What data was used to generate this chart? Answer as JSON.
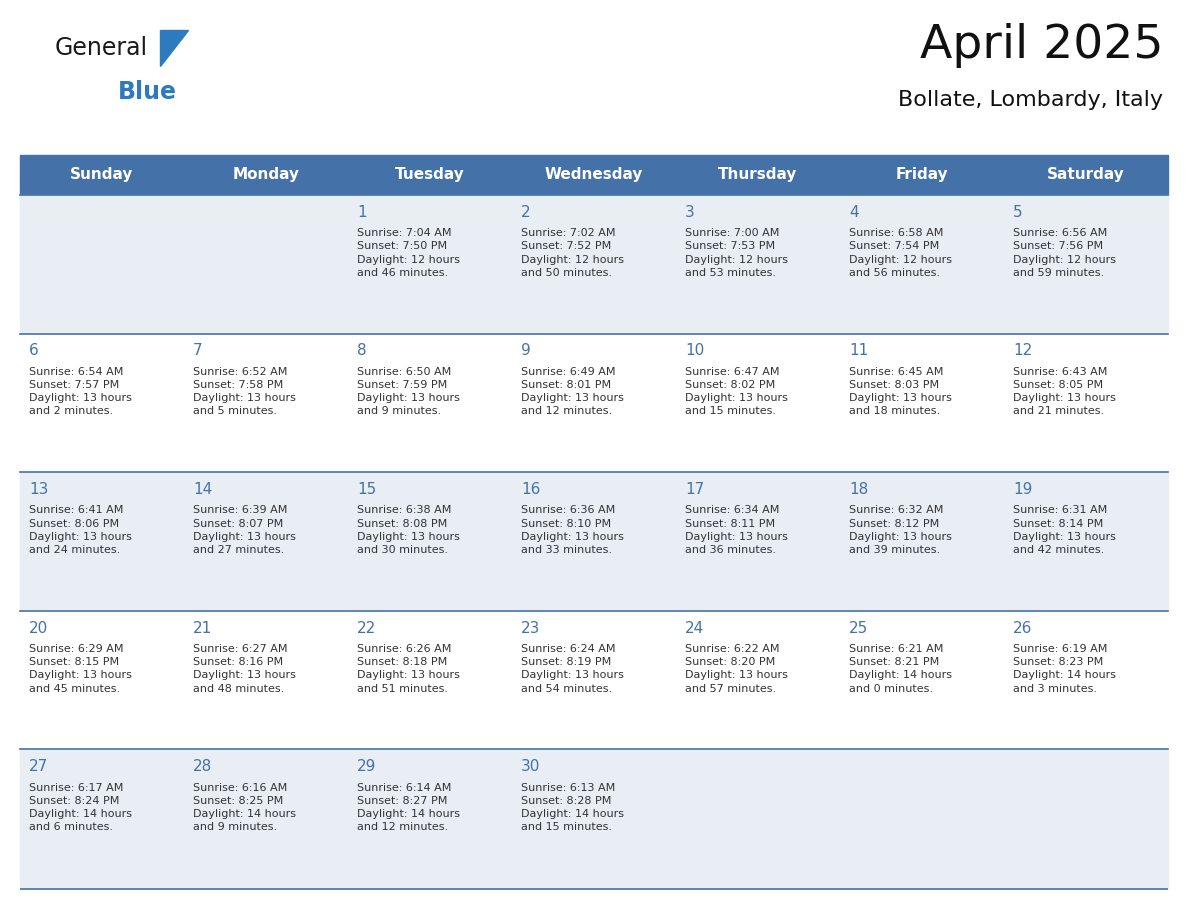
{
  "title": "April 2025",
  "subtitle": "Bollate, Lombardy, Italy",
  "header_bg": "#4472a8",
  "header_text_color": "#ffffff",
  "cell_bg_light": "#e8eef4",
  "cell_bg_white": "#ffffff",
  "cell_border_color": "#4472a8",
  "day_number_color": "#4472a8",
  "text_color": "#333333",
  "days_of_week": [
    "Sunday",
    "Monday",
    "Tuesday",
    "Wednesday",
    "Thursday",
    "Friday",
    "Saturday"
  ],
  "weeks": [
    [
      {
        "day": "",
        "info": ""
      },
      {
        "day": "",
        "info": ""
      },
      {
        "day": "1",
        "info": "Sunrise: 7:04 AM\nSunset: 7:50 PM\nDaylight: 12 hours\nand 46 minutes."
      },
      {
        "day": "2",
        "info": "Sunrise: 7:02 AM\nSunset: 7:52 PM\nDaylight: 12 hours\nand 50 minutes."
      },
      {
        "day": "3",
        "info": "Sunrise: 7:00 AM\nSunset: 7:53 PM\nDaylight: 12 hours\nand 53 minutes."
      },
      {
        "day": "4",
        "info": "Sunrise: 6:58 AM\nSunset: 7:54 PM\nDaylight: 12 hours\nand 56 minutes."
      },
      {
        "day": "5",
        "info": "Sunrise: 6:56 AM\nSunset: 7:56 PM\nDaylight: 12 hours\nand 59 minutes."
      }
    ],
    [
      {
        "day": "6",
        "info": "Sunrise: 6:54 AM\nSunset: 7:57 PM\nDaylight: 13 hours\nand 2 minutes."
      },
      {
        "day": "7",
        "info": "Sunrise: 6:52 AM\nSunset: 7:58 PM\nDaylight: 13 hours\nand 5 minutes."
      },
      {
        "day": "8",
        "info": "Sunrise: 6:50 AM\nSunset: 7:59 PM\nDaylight: 13 hours\nand 9 minutes."
      },
      {
        "day": "9",
        "info": "Sunrise: 6:49 AM\nSunset: 8:01 PM\nDaylight: 13 hours\nand 12 minutes."
      },
      {
        "day": "10",
        "info": "Sunrise: 6:47 AM\nSunset: 8:02 PM\nDaylight: 13 hours\nand 15 minutes."
      },
      {
        "day": "11",
        "info": "Sunrise: 6:45 AM\nSunset: 8:03 PM\nDaylight: 13 hours\nand 18 minutes."
      },
      {
        "day": "12",
        "info": "Sunrise: 6:43 AM\nSunset: 8:05 PM\nDaylight: 13 hours\nand 21 minutes."
      }
    ],
    [
      {
        "day": "13",
        "info": "Sunrise: 6:41 AM\nSunset: 8:06 PM\nDaylight: 13 hours\nand 24 minutes."
      },
      {
        "day": "14",
        "info": "Sunrise: 6:39 AM\nSunset: 8:07 PM\nDaylight: 13 hours\nand 27 minutes."
      },
      {
        "day": "15",
        "info": "Sunrise: 6:38 AM\nSunset: 8:08 PM\nDaylight: 13 hours\nand 30 minutes."
      },
      {
        "day": "16",
        "info": "Sunrise: 6:36 AM\nSunset: 8:10 PM\nDaylight: 13 hours\nand 33 minutes."
      },
      {
        "day": "17",
        "info": "Sunrise: 6:34 AM\nSunset: 8:11 PM\nDaylight: 13 hours\nand 36 minutes."
      },
      {
        "day": "18",
        "info": "Sunrise: 6:32 AM\nSunset: 8:12 PM\nDaylight: 13 hours\nand 39 minutes."
      },
      {
        "day": "19",
        "info": "Sunrise: 6:31 AM\nSunset: 8:14 PM\nDaylight: 13 hours\nand 42 minutes."
      }
    ],
    [
      {
        "day": "20",
        "info": "Sunrise: 6:29 AM\nSunset: 8:15 PM\nDaylight: 13 hours\nand 45 minutes."
      },
      {
        "day": "21",
        "info": "Sunrise: 6:27 AM\nSunset: 8:16 PM\nDaylight: 13 hours\nand 48 minutes."
      },
      {
        "day": "22",
        "info": "Sunrise: 6:26 AM\nSunset: 8:18 PM\nDaylight: 13 hours\nand 51 minutes."
      },
      {
        "day": "23",
        "info": "Sunrise: 6:24 AM\nSunset: 8:19 PM\nDaylight: 13 hours\nand 54 minutes."
      },
      {
        "day": "24",
        "info": "Sunrise: 6:22 AM\nSunset: 8:20 PM\nDaylight: 13 hours\nand 57 minutes."
      },
      {
        "day": "25",
        "info": "Sunrise: 6:21 AM\nSunset: 8:21 PM\nDaylight: 14 hours\nand 0 minutes."
      },
      {
        "day": "26",
        "info": "Sunrise: 6:19 AM\nSunset: 8:23 PM\nDaylight: 14 hours\nand 3 minutes."
      }
    ],
    [
      {
        "day": "27",
        "info": "Sunrise: 6:17 AM\nSunset: 8:24 PM\nDaylight: 14 hours\nand 6 minutes."
      },
      {
        "day": "28",
        "info": "Sunrise: 6:16 AM\nSunset: 8:25 PM\nDaylight: 14 hours\nand 9 minutes."
      },
      {
        "day": "29",
        "info": "Sunrise: 6:14 AM\nSunset: 8:27 PM\nDaylight: 14 hours\nand 12 minutes."
      },
      {
        "day": "30",
        "info": "Sunrise: 6:13 AM\nSunset: 8:28 PM\nDaylight: 14 hours\nand 15 minutes."
      },
      {
        "day": "",
        "info": ""
      },
      {
        "day": "",
        "info": ""
      },
      {
        "day": "",
        "info": ""
      }
    ]
  ],
  "logo_text1": "General",
  "logo_text2": "Blue",
  "logo_color1": "#1a1a1a",
  "logo_color2": "#2e7abf",
  "logo_triangle_color": "#2e7abf",
  "title_fontsize": 34,
  "subtitle_fontsize": 16,
  "header_fontsize": 11,
  "day_num_fontsize": 11,
  "cell_text_fontsize": 8
}
